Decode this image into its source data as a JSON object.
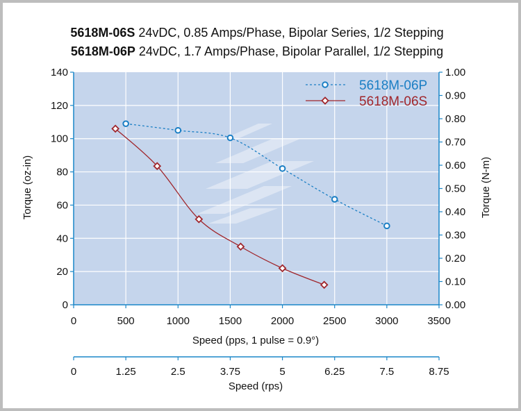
{
  "title_lines": [
    {
      "model": "5618M-06S",
      "desc": " 24vDC, 0.85 Amps/Phase, Bipolar Series, 1/2 Stepping"
    },
    {
      "model": "5618M-06P",
      "desc": " 24vDC, 1.7 Amps/Phase, Bipolar Parallel, 1/2 Stepping"
    }
  ],
  "colors": {
    "plot_bg": "#c5d5ec",
    "grid": "#ffffff",
    "axis": "#1a86c8",
    "series_p": "#1a7ec4",
    "series_s": "#a0262c",
    "watermark": "#dde6f3"
  },
  "chart_data": {
    "type": "line",
    "x_axis": {
      "label": "Speed (pps, 1 pulse = 0.9°)",
      "range": [
        0,
        3500
      ],
      "ticks": [
        0,
        500,
        1000,
        1500,
        2000,
        2500,
        3000,
        3500
      ],
      "tick_labels": [
        "0",
        "500",
        "1000",
        "1500",
        "2000",
        "2500",
        "3000",
        "3500"
      ]
    },
    "x2_axis": {
      "label": "Speed (rps)",
      "range": [
        0,
        8.75
      ],
      "ticks": [
        0,
        1.25,
        2.5,
        3.75,
        5,
        6.25,
        7.5,
        8.75
      ],
      "tick_labels": [
        "0",
        "1.25",
        "2.5",
        "3.75",
        "5",
        "6.25",
        "7.5",
        "8.75"
      ]
    },
    "y_axis": {
      "label": "Torque (oz-in)",
      "range": [
        0,
        140
      ],
      "ticks": [
        0,
        20,
        40,
        60,
        80,
        100,
        120,
        140
      ],
      "tick_labels": [
        "0",
        "20",
        "40",
        "60",
        "80",
        "100",
        "120",
        "140"
      ]
    },
    "y2_axis": {
      "label": "Torque (N-m)",
      "range": [
        0,
        1.0
      ],
      "ticks": [
        0,
        0.1,
        0.2,
        0.3,
        0.4,
        0.5,
        0.6,
        0.7,
        0.8,
        0.9,
        1.0
      ],
      "tick_labels": [
        "0.00",
        "0.10",
        "0.20",
        "0.30",
        "0.40",
        "0.50",
        "0.60",
        "0.70",
        "0.80",
        "0.90",
        "1.00"
      ]
    },
    "grid": true,
    "legend_position": "top-right",
    "series": [
      {
        "name": "5618M-06P",
        "color_key": "series_p",
        "marker": "circle",
        "line_style": "dashed",
        "x": [
          500,
          1000,
          1500,
          2000,
          2500,
          3000
        ],
        "y": [
          109,
          105,
          100.5,
          82,
          63.5,
          47.5
        ]
      },
      {
        "name": "5618M-06S",
        "color_key": "series_s",
        "marker": "diamond",
        "line_style": "solid",
        "x": [
          400,
          800,
          1200,
          1600,
          2000,
          2400
        ],
        "y": [
          106,
          83.5,
          51.5,
          35,
          22,
          12
        ]
      }
    ]
  }
}
